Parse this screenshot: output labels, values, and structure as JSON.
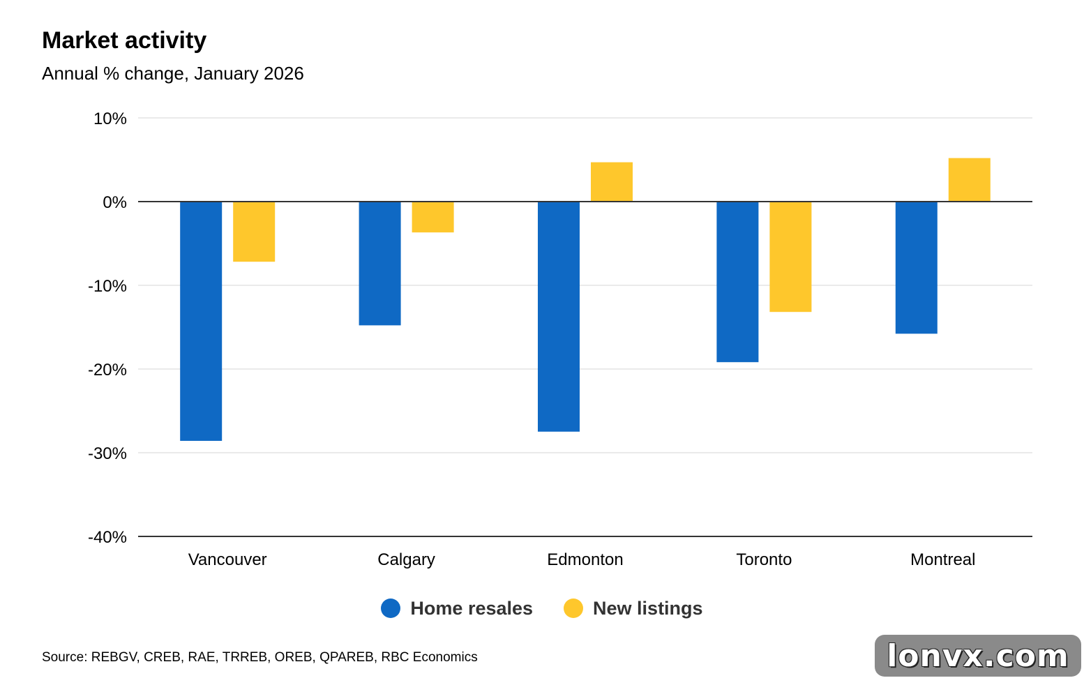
{
  "chart_data": {
    "type": "bar",
    "title": "Market activity",
    "subtitle": "Annual % change, January 2026",
    "categories": [
      "Vancouver",
      "Calgary",
      "Edmonton",
      "Toronto",
      "Montreal"
    ],
    "series": [
      {
        "name": "Home resales",
        "color": "#0F69C4",
        "values": [
          -28.5,
          -14.7,
          -27.4,
          -19.1,
          -15.7
        ]
      },
      {
        "name": "New listings",
        "color": "#FEC72C",
        "values": [
          -7.1,
          -3.6,
          4.7,
          -13.1,
          5.2
        ]
      }
    ],
    "ylim": [
      -40,
      10
    ],
    "yticks": [
      10,
      0,
      -10,
      -20,
      -30,
      -40
    ],
    "ytick_labels": [
      "10%",
      "0%",
      "-10%",
      "-20%",
      "-30%",
      "-40%"
    ],
    "grid": true,
    "legend_position": "bottom",
    "source": "Source: REBGV, CREB, RAE, TRREB, OREB, QPAREB, RBC Economics"
  },
  "watermark": "lonvx.com"
}
